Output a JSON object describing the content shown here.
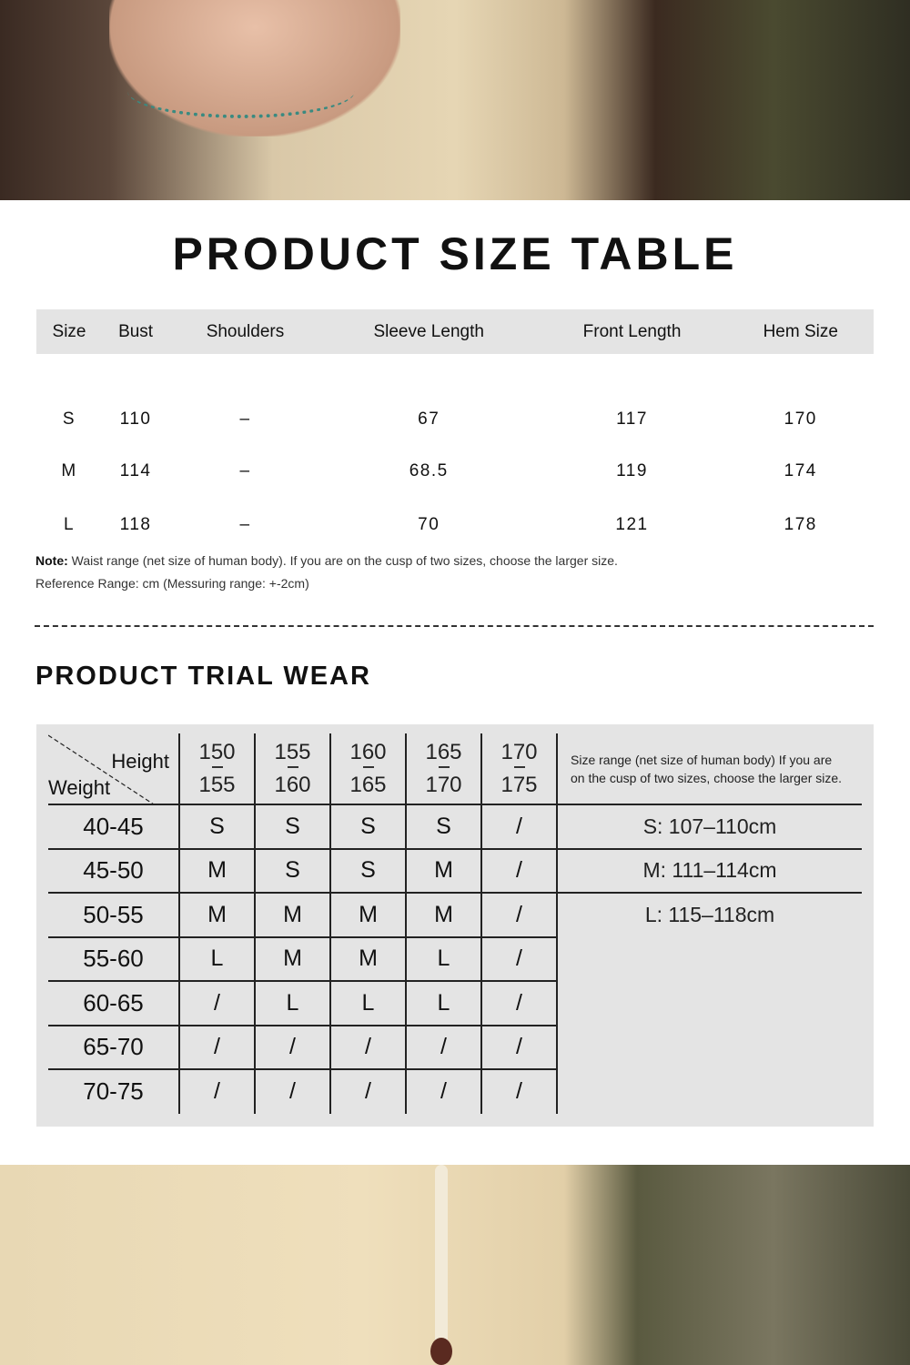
{
  "size_table": {
    "title": "PRODUCT SIZE TABLE",
    "headers": [
      "Size",
      "Bust",
      "Shoulders",
      "Sleeve Length",
      "Front Length",
      "Hem Size"
    ],
    "rows": [
      [
        "S",
        "110",
        "–",
        "67",
        "117",
        "170"
      ],
      [
        "M",
        "114",
        "–",
        "68.5",
        "119",
        "174"
      ],
      [
        "L",
        "118",
        "–",
        "70",
        "121",
        "178"
      ]
    ],
    "note_label": "Note:",
    "note": "Waist range (net size of human body). If you are on the cusp of two sizes, choose the larger size.",
    "reference": "Reference Range: cm (Messuring range: +-2cm)"
  },
  "trial_wear": {
    "title": "PRODUCT TRIAL WEAR",
    "height_label": "Height",
    "weight_label": "Weight",
    "heights": [
      [
        "150",
        "155"
      ],
      [
        "155",
        "160"
      ],
      [
        "160",
        "165"
      ],
      [
        "165",
        "170"
      ],
      [
        "170",
        "175"
      ]
    ],
    "note": "Size range (net size of human body) If you are on the cusp of two sizes, choose the larger size.",
    "rows": [
      {
        "weight": "40-45",
        "sizes": [
          "S",
          "S",
          "S",
          "S",
          "/"
        ]
      },
      {
        "weight": "45-50",
        "sizes": [
          "M",
          "S",
          "S",
          "M",
          "/"
        ]
      },
      {
        "weight": "50-55",
        "sizes": [
          "M",
          "M",
          "M",
          "M",
          "/"
        ]
      },
      {
        "weight": "55-60",
        "sizes": [
          "L",
          "M",
          "M",
          "L",
          "/"
        ]
      },
      {
        "weight": "60-65",
        "sizes": [
          "/",
          "L",
          "L",
          "L",
          "/"
        ]
      },
      {
        "weight": "65-70",
        "sizes": [
          "/",
          "/",
          "/",
          "/",
          "/"
        ]
      },
      {
        "weight": "70-75",
        "sizes": [
          "/",
          "/",
          "/",
          "/",
          "/"
        ]
      }
    ],
    "ranges": [
      "S: 107–110cm",
      "M: 111–114cm",
      "L: 115–118cm"
    ]
  }
}
